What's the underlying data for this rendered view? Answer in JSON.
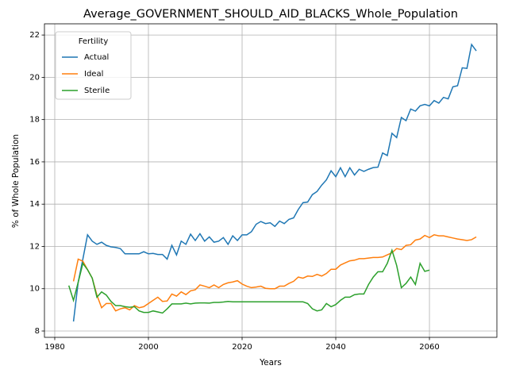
{
  "chart_data": {
    "type": "line",
    "title": "Average_GOVERNMENT_SHOULD_AID_BLACKS_Whole_Population",
    "xlabel": "Years",
    "ylabel": "% of Whole Population",
    "legend_title": "Fertility",
    "legend_loc": "upper left",
    "grid": true,
    "xlim": [
      1977.8,
      2074.4
    ],
    "ylim": [
      7.7,
      22.53
    ],
    "xticks": [
      1980,
      2000,
      2020,
      2040,
      2060
    ],
    "yticks": [
      8,
      10,
      12,
      14,
      16,
      18,
      20,
      22
    ],
    "x": [
      1983,
      1984,
      1985,
      1986,
      1987,
      1988,
      1989,
      1990,
      1991,
      1992,
      1993,
      1994,
      1995,
      1996,
      1997,
      1998,
      1999,
      2000,
      2001,
      2002,
      2003,
      2004,
      2005,
      2006,
      2007,
      2008,
      2009,
      2010,
      2011,
      2012,
      2013,
      2014,
      2015,
      2016,
      2017,
      2018,
      2019,
      2020,
      2021,
      2022,
      2023,
      2024,
      2025,
      2026,
      2027,
      2028,
      2029,
      2030,
      2031,
      2032,
      2033,
      2034,
      2035,
      2036,
      2037,
      2038,
      2039,
      2040,
      2041,
      2042,
      2043,
      2044,
      2045,
      2046,
      2047,
      2048,
      2049,
      2050,
      2051,
      2052,
      2053,
      2054,
      2055,
      2056,
      2057,
      2058,
      2059,
      2060,
      2061,
      2062,
      2063,
      2064,
      2065,
      2066,
      2067,
      2068,
      2069,
      2070
    ],
    "series": [
      {
        "name": "Actual",
        "color": "#1f77b4",
        "values": [
          null,
          8.45,
          10.3,
          11.4,
          12.55,
          12.25,
          12.1,
          12.2,
          12.05,
          11.98,
          11.95,
          11.9,
          11.65,
          11.65,
          11.65,
          11.65,
          11.75,
          11.65,
          11.67,
          11.62,
          11.62,
          11.4,
          12.05,
          11.6,
          12.25,
          12.1,
          12.58,
          12.28,
          12.6,
          12.25,
          12.45,
          12.2,
          12.25,
          12.42,
          12.1,
          12.5,
          12.28,
          12.55,
          12.55,
          12.7,
          13.05,
          13.18,
          13.08,
          13.12,
          12.95,
          13.2,
          13.08,
          13.28,
          13.35,
          13.75,
          14.07,
          14.1,
          14.45,
          14.6,
          14.9,
          15.15,
          15.58,
          15.3,
          15.72,
          15.3,
          15.72,
          15.38,
          15.65,
          15.55,
          15.65,
          15.73,
          15.75,
          16.42,
          16.3,
          17.35,
          17.15,
          18.1,
          17.95,
          18.5,
          18.4,
          18.65,
          18.72,
          18.65,
          18.9,
          18.78,
          19.05,
          18.98,
          19.55,
          19.6,
          20.45,
          20.42,
          21.55,
          21.25
        ]
      },
      {
        "name": "Ideal",
        "color": "#ff7f0e",
        "values": [
          null,
          10.35,
          11.4,
          11.3,
          10.9,
          10.5,
          9.7,
          9.1,
          9.3,
          9.3,
          8.95,
          9.05,
          9.1,
          9.0,
          9.2,
          9.1,
          9.15,
          9.3,
          9.45,
          9.6,
          9.4,
          9.42,
          9.75,
          9.65,
          9.85,
          9.72,
          9.9,
          9.95,
          10.18,
          10.12,
          10.05,
          10.18,
          10.05,
          10.2,
          10.28,
          10.32,
          10.38,
          10.22,
          10.12,
          10.05,
          10.08,
          10.12,
          10.02,
          10.0,
          10.0,
          10.12,
          10.12,
          10.25,
          10.35,
          10.55,
          10.5,
          10.6,
          10.58,
          10.68,
          10.6,
          10.72,
          10.92,
          10.92,
          11.12,
          11.22,
          11.32,
          11.35,
          11.42,
          11.42,
          11.45,
          11.48,
          11.48,
          11.5,
          11.6,
          11.7,
          11.9,
          11.85,
          12.05,
          12.08,
          12.3,
          12.35,
          12.52,
          12.42,
          12.55,
          12.5,
          12.5,
          12.45,
          12.4,
          12.35,
          12.32,
          12.28,
          12.32,
          12.45
        ]
      },
      {
        "name": "Sterile",
        "color": "#2ca02c",
        "values": [
          10.15,
          9.45,
          10.3,
          11.2,
          10.9,
          10.5,
          9.6,
          9.85,
          9.7,
          9.4,
          9.2,
          9.2,
          9.15,
          9.12,
          9.15,
          8.95,
          8.88,
          8.88,
          8.95,
          8.9,
          8.85,
          9.05,
          9.28,
          9.28,
          9.28,
          9.32,
          9.28,
          9.32,
          9.33,
          9.33,
          9.32,
          9.35,
          9.35,
          9.37,
          9.4,
          9.38,
          9.38,
          9.38,
          9.38,
          9.38,
          9.38,
          9.38,
          9.38,
          9.38,
          9.38,
          9.38,
          9.38,
          9.38,
          9.38,
          9.38,
          9.38,
          9.3,
          9.05,
          8.95,
          9.0,
          9.3,
          9.15,
          9.25,
          9.45,
          9.6,
          9.6,
          9.72,
          9.75,
          9.75,
          10.2,
          10.55,
          10.8,
          10.8,
          11.2,
          11.82,
          11.1,
          10.05,
          10.25,
          10.55,
          10.2,
          11.2,
          10.82,
          10.88,
          null,
          null,
          null,
          null,
          null,
          null,
          null,
          null,
          null,
          null
        ]
      }
    ]
  }
}
